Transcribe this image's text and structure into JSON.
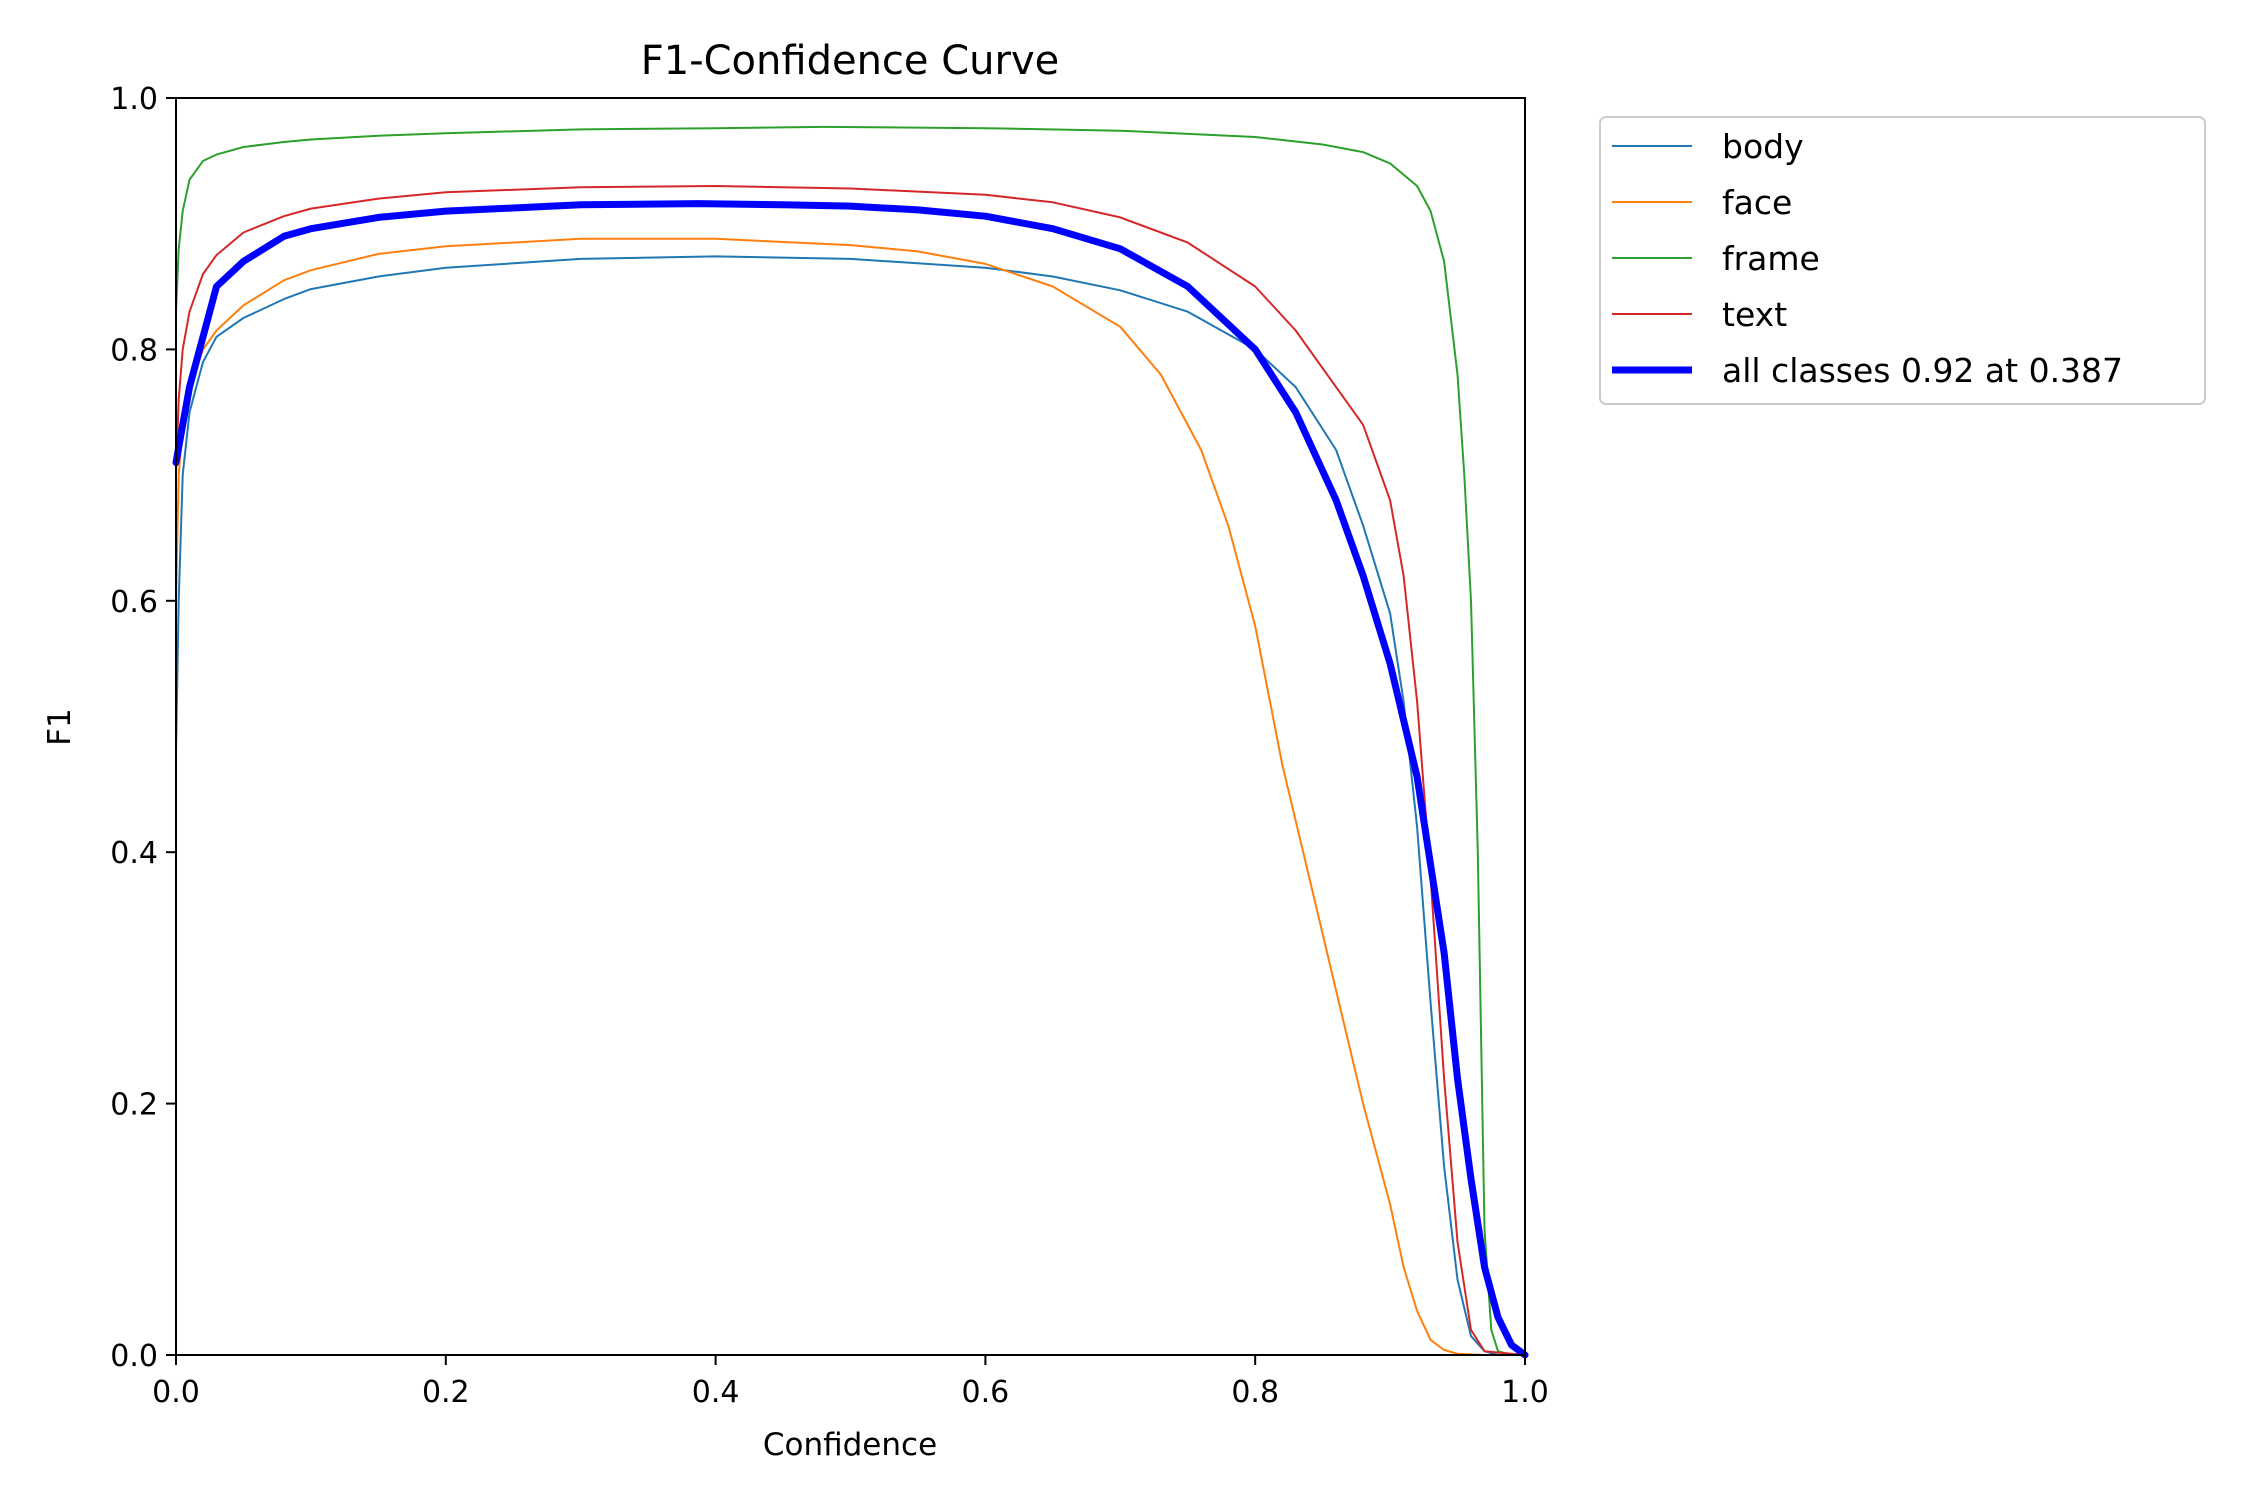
{
  "chart_data": {
    "type": "line",
    "title": "F1-Confidence Curve",
    "xlabel": "Confidence",
    "ylabel": "F1",
    "xlim": [
      0.0,
      1.0
    ],
    "ylim": [
      0.0,
      1.0
    ],
    "xticks": [
      "0.0",
      "0.2",
      "0.4",
      "0.6",
      "0.8",
      "1.0"
    ],
    "yticks": [
      "0.0",
      "0.2",
      "0.4",
      "0.6",
      "0.8",
      "1.0"
    ],
    "grid": false,
    "legend_position": "outside-upper-right",
    "series": [
      {
        "name": "body",
        "color": "#1f77b4",
        "width": 2,
        "x": [
          0.0,
          0.002,
          0.005,
          0.01,
          0.02,
          0.03,
          0.05,
          0.08,
          0.1,
          0.15,
          0.2,
          0.3,
          0.4,
          0.5,
          0.6,
          0.65,
          0.7,
          0.75,
          0.8,
          0.83,
          0.86,
          0.88,
          0.9,
          0.91,
          0.92,
          0.93,
          0.94,
          0.95,
          0.96,
          0.97,
          0.98,
          1.0
        ],
        "y": [
          0.48,
          0.6,
          0.7,
          0.75,
          0.79,
          0.81,
          0.825,
          0.84,
          0.848,
          0.858,
          0.865,
          0.872,
          0.874,
          0.872,
          0.865,
          0.858,
          0.847,
          0.83,
          0.8,
          0.77,
          0.72,
          0.66,
          0.59,
          0.52,
          0.42,
          0.28,
          0.15,
          0.06,
          0.015,
          0.003,
          0.0,
          0.0
        ]
      },
      {
        "name": "face",
        "color": "#ff7f0e",
        "width": 2,
        "x": [
          0.0,
          0.002,
          0.005,
          0.01,
          0.02,
          0.03,
          0.05,
          0.08,
          0.1,
          0.15,
          0.2,
          0.3,
          0.4,
          0.5,
          0.55,
          0.6,
          0.65,
          0.7,
          0.73,
          0.76,
          0.78,
          0.8,
          0.82,
          0.84,
          0.86,
          0.88,
          0.9,
          0.91,
          0.92,
          0.93,
          0.94,
          0.95,
          0.97,
          1.0
        ],
        "y": [
          0.6,
          0.7,
          0.74,
          0.77,
          0.8,
          0.815,
          0.835,
          0.855,
          0.863,
          0.876,
          0.882,
          0.888,
          0.888,
          0.883,
          0.878,
          0.868,
          0.85,
          0.818,
          0.78,
          0.72,
          0.66,
          0.58,
          0.47,
          0.38,
          0.29,
          0.2,
          0.12,
          0.07,
          0.035,
          0.012,
          0.004,
          0.001,
          0.0,
          0.0
        ]
      },
      {
        "name": "frame",
        "color": "#2ca02c",
        "width": 2,
        "x": [
          0.0,
          0.002,
          0.005,
          0.01,
          0.02,
          0.03,
          0.05,
          0.08,
          0.1,
          0.15,
          0.2,
          0.3,
          0.4,
          0.48,
          0.6,
          0.7,
          0.8,
          0.85,
          0.88,
          0.9,
          0.92,
          0.93,
          0.94,
          0.95,
          0.955,
          0.96,
          0.965,
          0.97,
          0.975,
          0.98,
          0.99,
          1.0
        ],
        "y": [
          0.83,
          0.88,
          0.91,
          0.935,
          0.95,
          0.955,
          0.961,
          0.965,
          0.967,
          0.97,
          0.972,
          0.975,
          0.976,
          0.977,
          0.976,
          0.974,
          0.969,
          0.963,
          0.957,
          0.948,
          0.93,
          0.91,
          0.87,
          0.78,
          0.7,
          0.6,
          0.4,
          0.1,
          0.02,
          0.003,
          0.0,
          0.0
        ]
      },
      {
        "name": "text",
        "color": "#d62728",
        "width": 2,
        "x": [
          0.0,
          0.002,
          0.005,
          0.01,
          0.02,
          0.03,
          0.05,
          0.08,
          0.1,
          0.15,
          0.2,
          0.3,
          0.4,
          0.5,
          0.6,
          0.65,
          0.7,
          0.75,
          0.8,
          0.83,
          0.86,
          0.88,
          0.89,
          0.9,
          0.91,
          0.92,
          0.93,
          0.94,
          0.95,
          0.96,
          0.97,
          1.0
        ],
        "y": [
          0.7,
          0.76,
          0.8,
          0.83,
          0.86,
          0.875,
          0.893,
          0.906,
          0.912,
          0.92,
          0.925,
          0.929,
          0.93,
          0.928,
          0.923,
          0.917,
          0.905,
          0.885,
          0.85,
          0.815,
          0.77,
          0.74,
          0.71,
          0.68,
          0.62,
          0.52,
          0.38,
          0.22,
          0.09,
          0.02,
          0.003,
          0.0
        ]
      },
      {
        "name": "all classes 0.92 at 0.387",
        "color": "#0000ff",
        "width": 7,
        "x": [
          0.0,
          0.005,
          0.01,
          0.02,
          0.03,
          0.05,
          0.08,
          0.1,
          0.15,
          0.2,
          0.3,
          0.387,
          0.45,
          0.5,
          0.55,
          0.6,
          0.65,
          0.7,
          0.75,
          0.8,
          0.83,
          0.86,
          0.88,
          0.9,
          0.92,
          0.94,
          0.95,
          0.96,
          0.97,
          0.98,
          0.99,
          1.0
        ],
        "y": [
          0.71,
          0.74,
          0.77,
          0.81,
          0.85,
          0.87,
          0.89,
          0.896,
          0.905,
          0.91,
          0.915,
          0.916,
          0.915,
          0.914,
          0.911,
          0.906,
          0.896,
          0.88,
          0.85,
          0.8,
          0.75,
          0.68,
          0.62,
          0.55,
          0.46,
          0.32,
          0.22,
          0.14,
          0.07,
          0.03,
          0.008,
          0.0
        ]
      }
    ]
  }
}
